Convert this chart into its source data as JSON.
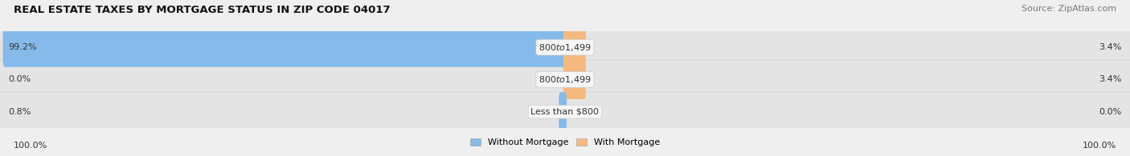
{
  "title": "REAL ESTATE TAXES BY MORTGAGE STATUS IN ZIP CODE 04017",
  "source": "Source: ZipAtlas.com",
  "rows": [
    {
      "label": "Less than $800",
      "without_mortgage": 0.8,
      "with_mortgage": 0.0
    },
    {
      "label": "$800 to $1,499",
      "without_mortgage": 0.0,
      "with_mortgage": 3.4
    },
    {
      "label": "$800 to $1,499",
      "without_mortgage": 99.2,
      "with_mortgage": 3.4
    }
  ],
  "color_without": "#85BAEA",
  "color_with": "#F5B97F",
  "bar_height": 0.62,
  "bg_color": "#EFEFEF",
  "bar_bg_color": "#E4E4E4",
  "xlim": 100,
  "left_label": "100.0%",
  "right_label": "100.0%",
  "legend_without": "Without Mortgage",
  "legend_with": "With Mortgage",
  "title_fontsize": 9.5,
  "source_fontsize": 8,
  "label_fontsize": 8,
  "tick_fontsize": 8,
  "center_label_bg": "#F5F5F5",
  "bar_bg_edge": "#D8D8D8"
}
